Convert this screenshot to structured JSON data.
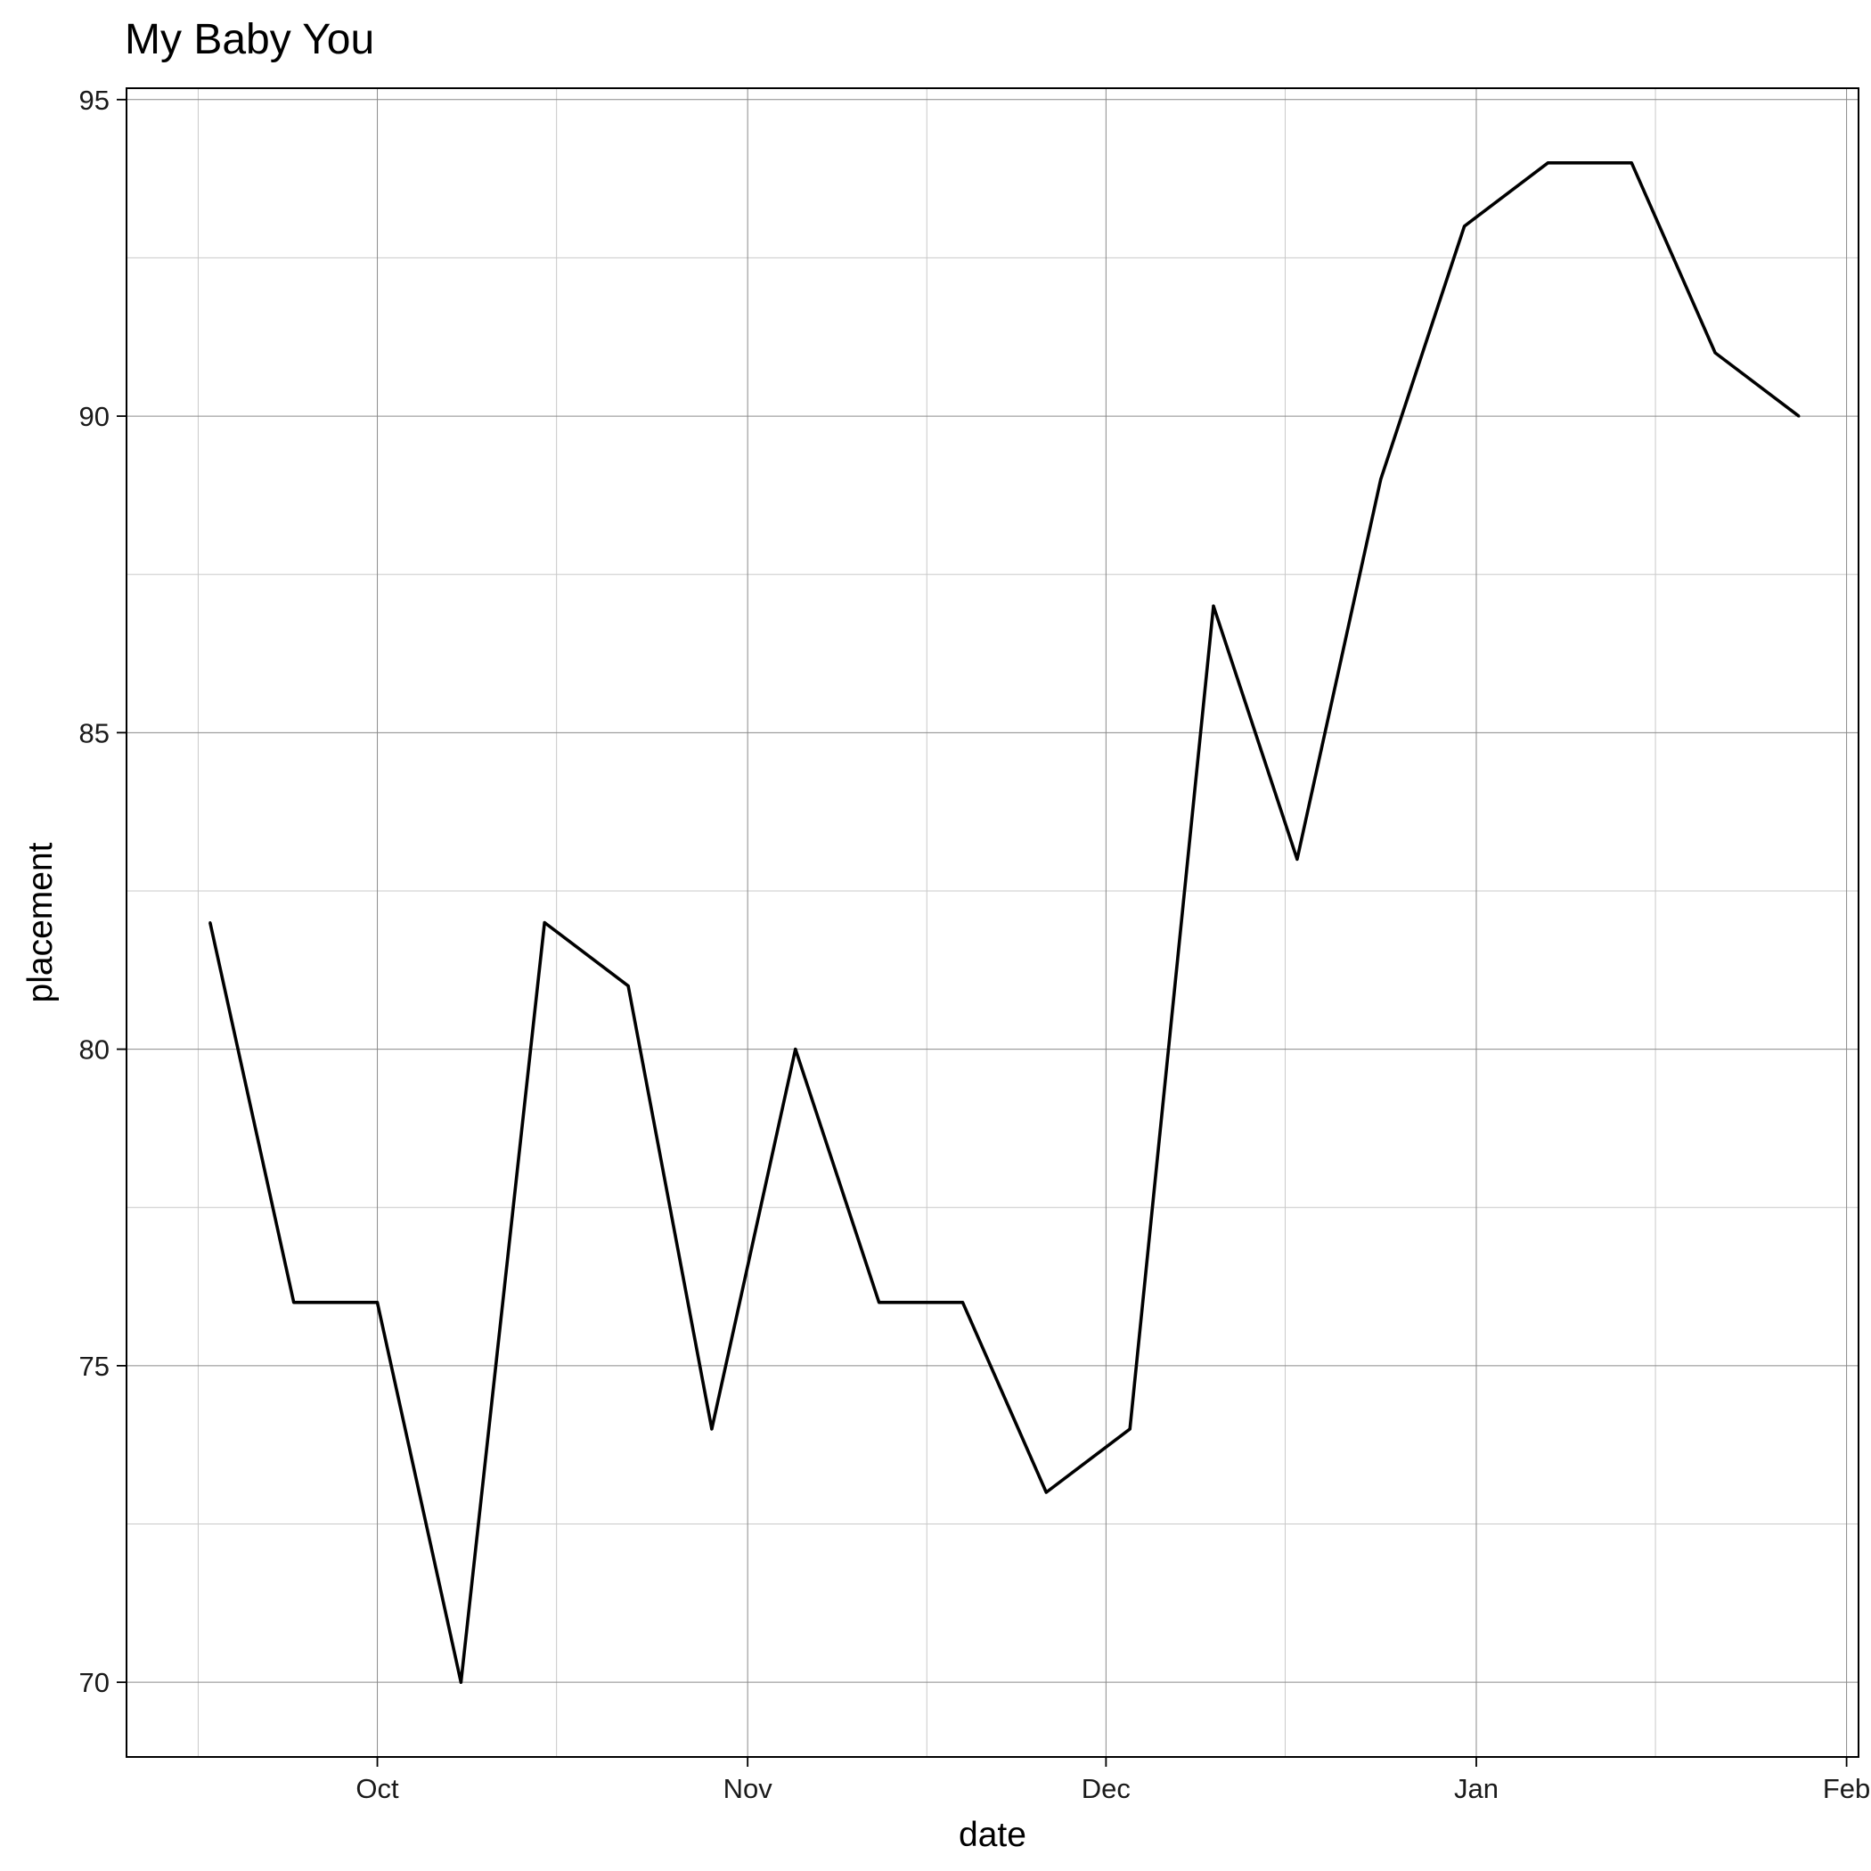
{
  "chart_data": {
    "type": "line",
    "title": "My Baby You",
    "xlabel": "date",
    "ylabel": "placement",
    "x_type": "date",
    "xlim": [
      "2022-09-10",
      "2023-02-02"
    ],
    "ylim": [
      68.82,
      95.18
    ],
    "x_ticks": [
      {
        "date": "2022-10-01",
        "label": "Oct"
      },
      {
        "date": "2022-11-01",
        "label": "Nov"
      },
      {
        "date": "2022-12-01",
        "label": "Dec"
      },
      {
        "date": "2023-01-01",
        "label": "Jan"
      },
      {
        "date": "2023-02-01",
        "label": "Feb"
      }
    ],
    "x_minor_ticks": [
      "2022-09-16",
      "2022-10-16",
      "2022-11-16",
      "2022-12-16",
      "2023-01-16"
    ],
    "y_ticks": [
      70,
      75,
      80,
      85,
      90,
      95
    ],
    "y_minor_ticks": [
      72.5,
      77.5,
      82.5,
      87.5,
      92.5
    ],
    "grid": true,
    "line_color": "#000000",
    "series": [
      {
        "points": [
          {
            "x": "2022-09-17",
            "y": 82
          },
          {
            "x": "2022-09-24",
            "y": 76
          },
          {
            "x": "2022-10-01",
            "y": 76
          },
          {
            "x": "2022-10-08",
            "y": 70
          },
          {
            "x": "2022-10-15",
            "y": 82
          },
          {
            "x": "2022-10-22",
            "y": 81
          },
          {
            "x": "2022-10-29",
            "y": 74
          },
          {
            "x": "2022-11-05",
            "y": 80
          },
          {
            "x": "2022-11-12",
            "y": 76
          },
          {
            "x": "2022-11-19",
            "y": 76
          },
          {
            "x": "2022-11-26",
            "y": 73
          },
          {
            "x": "2022-12-03",
            "y": 74
          },
          {
            "x": "2022-12-10",
            "y": 87
          },
          {
            "x": "2022-12-17",
            "y": 83
          },
          {
            "x": "2022-12-24",
            "y": 89
          },
          {
            "x": "2022-12-31",
            "y": 93
          },
          {
            "x": "2023-01-07",
            "y": 94
          },
          {
            "x": "2023-01-14",
            "y": 94
          },
          {
            "x": "2023-01-21",
            "y": 91
          },
          {
            "x": "2023-01-28",
            "y": 90
          }
        ]
      }
    ]
  }
}
